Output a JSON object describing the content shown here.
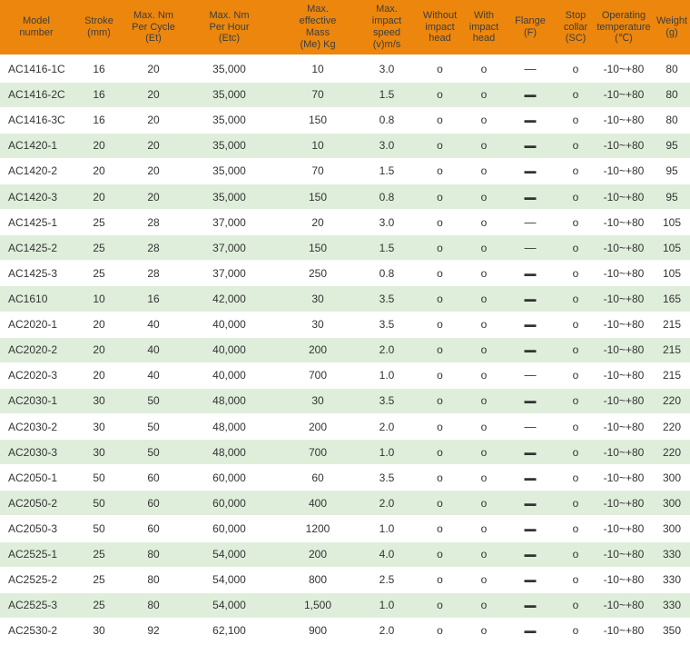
{
  "table": {
    "header_bg": "#EC860D",
    "row_alt_bg": "#DFEEDB",
    "text_color": "#333333",
    "columns": [
      {
        "id": "model",
        "label": "Model\nnumber"
      },
      {
        "id": "stroke",
        "label": "Stroke\n(mm)"
      },
      {
        "id": "nm_cycle",
        "label": "Max. Nm\nPer Cycle\n(Et)"
      },
      {
        "id": "nm_hour",
        "label": "Max. Nm\nPer Hour\n(Etc)"
      },
      {
        "id": "mass",
        "label": "Max.\neffective\nMass\n(Me) Kg"
      },
      {
        "id": "speed",
        "label": "Max.\nimpact\nspeed\n(v)m/s"
      },
      {
        "id": "without_head",
        "label": "Without\nimpact\nhead"
      },
      {
        "id": "with_head",
        "label": "With\nimpact\nhead"
      },
      {
        "id": "flange",
        "label": "Flange\n(F)"
      },
      {
        "id": "stop_collar",
        "label": "Stop\ncollar\n(SC)"
      },
      {
        "id": "temp",
        "label": "Operating\ntemperature\n(℃)"
      },
      {
        "id": "weight",
        "label": "Weight\n(g)"
      }
    ],
    "rows": [
      {
        "model": "AC1416-1C",
        "stroke": "16",
        "nm_cycle": "20",
        "nm_hour": "35,000",
        "mass": "10",
        "speed": "3.0",
        "without_head": "o",
        "with_head": "o",
        "flange": "—",
        "flange_bold": false,
        "stop_collar": "o",
        "temp": "-10~+80",
        "weight": "80"
      },
      {
        "model": "AC1416-2C",
        "stroke": "16",
        "nm_cycle": "20",
        "nm_hour": "35,000",
        "mass": "70",
        "speed": "1.5",
        "without_head": "o",
        "with_head": "o",
        "flange": "—",
        "flange_bold": true,
        "stop_collar": "o",
        "temp": "-10~+80",
        "weight": "80"
      },
      {
        "model": "AC1416-3C",
        "stroke": "16",
        "nm_cycle": "20",
        "nm_hour": "35,000",
        "mass": "150",
        "speed": "0.8",
        "without_head": "o",
        "with_head": "o",
        "flange": "—",
        "flange_bold": true,
        "stop_collar": "o",
        "temp": "-10~+80",
        "weight": "80"
      },
      {
        "model": "AC1420-1",
        "stroke": "20",
        "nm_cycle": "20",
        "nm_hour": "35,000",
        "mass": "10",
        "speed": "3.0",
        "without_head": "o",
        "with_head": "o",
        "flange": "—",
        "flange_bold": true,
        "stop_collar": "o",
        "temp": "-10~+80",
        "weight": "95"
      },
      {
        "model": "AC1420-2",
        "stroke": "20",
        "nm_cycle": "20",
        "nm_hour": "35,000",
        "mass": "70",
        "speed": "1.5",
        "without_head": "o",
        "with_head": "o",
        "flange": "—",
        "flange_bold": true,
        "stop_collar": "o",
        "temp": "-10~+80",
        "weight": "95"
      },
      {
        "model": "AC1420-3",
        "stroke": "20",
        "nm_cycle": "20",
        "nm_hour": "35,000",
        "mass": "150",
        "speed": "0.8",
        "without_head": "o",
        "with_head": "o",
        "flange": "—",
        "flange_bold": true,
        "stop_collar": "o",
        "temp": "-10~+80",
        "weight": "95"
      },
      {
        "model": "AC1425-1",
        "stroke": "25",
        "nm_cycle": "28",
        "nm_hour": "37,000",
        "mass": "20",
        "speed": "3.0",
        "without_head": "o",
        "with_head": "o",
        "flange": "—",
        "flange_bold": false,
        "stop_collar": "o",
        "temp": "-10~+80",
        "weight": "105"
      },
      {
        "model": "AC1425-2",
        "stroke": "25",
        "nm_cycle": "28",
        "nm_hour": "37,000",
        "mass": "150",
        "speed": "1.5",
        "without_head": "o",
        "with_head": "o",
        "flange": "—",
        "flange_bold": false,
        "stop_collar": "o",
        "temp": "-10~+80",
        "weight": "105"
      },
      {
        "model": "AC1425-3",
        "stroke": "25",
        "nm_cycle": "28",
        "nm_hour": "37,000",
        "mass": "250",
        "speed": "0.8",
        "without_head": "o",
        "with_head": "o",
        "flange": "—",
        "flange_bold": true,
        "stop_collar": "o",
        "temp": "-10~+80",
        "weight": "105"
      },
      {
        "model": "AC1610",
        "stroke": "10",
        "nm_cycle": "16",
        "nm_hour": "42,000",
        "mass": "30",
        "speed": "3.5",
        "without_head": "o",
        "with_head": "o",
        "flange": "—",
        "flange_bold": true,
        "stop_collar": "o",
        "temp": "-10~+80",
        "weight": "165"
      },
      {
        "model": "AC2020-1",
        "stroke": "20",
        "nm_cycle": "40",
        "nm_hour": "40,000",
        "mass": "30",
        "speed": "3.5",
        "without_head": "o",
        "with_head": "o",
        "flange": "—",
        "flange_bold": true,
        "stop_collar": "o",
        "temp": "-10~+80",
        "weight": "215"
      },
      {
        "model": "AC2020-2",
        "stroke": "20",
        "nm_cycle": "40",
        "nm_hour": "40,000",
        "mass": "200",
        "speed": "2.0",
        "without_head": "o",
        "with_head": "o",
        "flange": "—",
        "flange_bold": true,
        "stop_collar": "o",
        "temp": "-10~+80",
        "weight": "215"
      },
      {
        "model": "AC2020-3",
        "stroke": "20",
        "nm_cycle": "40",
        "nm_hour": "40,000",
        "mass": "700",
        "speed": "1.0",
        "without_head": "o",
        "with_head": "o",
        "flange": "—",
        "flange_bold": false,
        "stop_collar": "o",
        "temp": "-10~+80",
        "weight": "215"
      },
      {
        "model": "AC2030-1",
        "stroke": "30",
        "nm_cycle": "50",
        "nm_hour": "48,000",
        "mass": "30",
        "speed": "3.5",
        "without_head": "o",
        "with_head": "o",
        "flange": "—",
        "flange_bold": true,
        "stop_collar": "o",
        "temp": "-10~+80",
        "weight": "220"
      },
      {
        "model": "AC2030-2",
        "stroke": "30",
        "nm_cycle": "50",
        "nm_hour": "48,000",
        "mass": "200",
        "speed": "2.0",
        "without_head": "o",
        "with_head": "o",
        "flange": "—",
        "flange_bold": false,
        "stop_collar": "o",
        "temp": "-10~+80",
        "weight": "220"
      },
      {
        "model": "AC2030-3",
        "stroke": "30",
        "nm_cycle": "50",
        "nm_hour": "48,000",
        "mass": "700",
        "speed": "1.0",
        "without_head": "o",
        "with_head": "o",
        "flange": "—",
        "flange_bold": true,
        "stop_collar": "o",
        "temp": "-10~+80",
        "weight": "220"
      },
      {
        "model": "AC2050-1",
        "stroke": "50",
        "nm_cycle": "60",
        "nm_hour": "60,000",
        "mass": "60",
        "speed": "3.5",
        "without_head": "o",
        "with_head": "o",
        "flange": "—",
        "flange_bold": true,
        "stop_collar": "o",
        "temp": "-10~+80",
        "weight": "300"
      },
      {
        "model": "AC2050-2",
        "stroke": "50",
        "nm_cycle": "60",
        "nm_hour": "60,000",
        "mass": "400",
        "speed": "2.0",
        "without_head": "o",
        "with_head": "o",
        "flange": "—",
        "flange_bold": true,
        "stop_collar": "o",
        "temp": "-10~+80",
        "weight": "300"
      },
      {
        "model": "AC2050-3",
        "stroke": "50",
        "nm_cycle": "60",
        "nm_hour": "60,000",
        "mass": "1200",
        "speed": "1.0",
        "without_head": "o",
        "with_head": "o",
        "flange": "—",
        "flange_bold": true,
        "stop_collar": "o",
        "temp": "-10~+80",
        "weight": "300"
      },
      {
        "model": "AC2525-1",
        "stroke": "25",
        "nm_cycle": "80",
        "nm_hour": "54,000",
        "mass": "200",
        "speed": "4.0",
        "without_head": "o",
        "with_head": "o",
        "flange": "—",
        "flange_bold": true,
        "stop_collar": "o",
        "temp": "-10~+80",
        "weight": "330"
      },
      {
        "model": "AC2525-2",
        "stroke": "25",
        "nm_cycle": "80",
        "nm_hour": "54,000",
        "mass": "800",
        "speed": "2.5",
        "without_head": "o",
        "with_head": "o",
        "flange": "—",
        "flange_bold": true,
        "stop_collar": "o",
        "temp": "-10~+80",
        "weight": "330"
      },
      {
        "model": "AC2525-3",
        "stroke": "25",
        "nm_cycle": "80",
        "nm_hour": "54,000",
        "mass": "1,500",
        "speed": "1.0",
        "without_head": "o",
        "with_head": "o",
        "flange": "—",
        "flange_bold": true,
        "stop_collar": "o",
        "temp": "-10~+80",
        "weight": "330"
      },
      {
        "model": "AC2530-2",
        "stroke": "30",
        "nm_cycle": "92",
        "nm_hour": "62,100",
        "mass": "900",
        "speed": "2.0",
        "without_head": "o",
        "with_head": "o",
        "flange": "—",
        "flange_bold": true,
        "stop_collar": "o",
        "temp": "-10~+80",
        "weight": "350"
      }
    ]
  }
}
